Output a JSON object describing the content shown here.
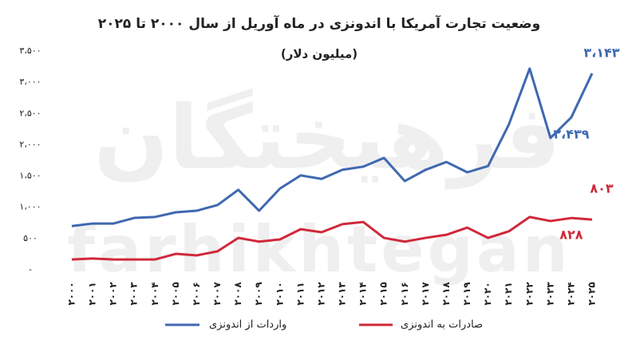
{
  "chart_data": {
    "type": "line",
    "title": "وضعیت تجارت آمریکا با اندونزی در ماه آوریل از سال ۲۰۰۰ تا ۲۰۲۵",
    "subtitle": "(میلیون دلار)",
    "watermark": [
      "فرهیختگان",
      "farhikhtegan"
    ],
    "categories": [
      "۲۰۰۰",
      "۲۰۰۱",
      "۲۰۰۲",
      "۲۰۰۳",
      "۲۰۰۴",
      "۲۰۰۵",
      "۲۰۰۶",
      "۲۰۰۷",
      "۲۰۰۸",
      "۲۰۰۹",
      "۲۰۱۰",
      "۲۰۱۱",
      "۲۰۱۲",
      "۲۰۱۳",
      "۲۰۱۴",
      "۲۰۱۵",
      "۲۰۱۶",
      "۲۰۱۷",
      "۲۰۱۸",
      "۲۰۱۹",
      "۲۰۲۰",
      "۲۰۲۱",
      "۲۰۲۲",
      "۲۰۲۳",
      "۲۰۲۴",
      "۲۰۲۵"
    ],
    "series": [
      {
        "name": "واردات از اندونزی",
        "color": "#3f68b0",
        "values": [
          700,
          740,
          740,
          830,
          845,
          920,
          945,
          1035,
          1280,
          945,
          1300,
          1510,
          1455,
          1600,
          1650,
          1790,
          1420,
          1600,
          1725,
          1560,
          1660,
          2325,
          3220,
          2110,
          2439,
          3143
        ],
        "value_labels": [
          null,
          null,
          null,
          null,
          null,
          null,
          null,
          null,
          null,
          null,
          null,
          null,
          null,
          null,
          null,
          null,
          null,
          null,
          null,
          null,
          null,
          null,
          null,
          null,
          "۲،۴۳۹",
          "۳،۱۴۳"
        ]
      },
      {
        "name": "صادرات به اندونزی",
        "color": "#d0293a",
        "values": [
          165,
          180,
          165,
          165,
          165,
          255,
          230,
          295,
          510,
          450,
          485,
          650,
          600,
          730,
          765,
          510,
          450,
          510,
          560,
          675,
          510,
          615,
          845,
          780,
          828,
          803
        ],
        "value_labels": [
          null,
          null,
          null,
          null,
          null,
          null,
          null,
          null,
          null,
          null,
          null,
          null,
          null,
          null,
          null,
          null,
          null,
          null,
          null,
          null,
          null,
          null,
          null,
          null,
          "۸۲۸",
          "۸۰۳"
        ]
      }
    ],
    "ylim": [
      0,
      3500
    ],
    "yticks": [
      {
        "value": 0,
        "label": "-"
      },
      "۵۰۰",
      "۱،۰۰۰",
      "۱،۵۰۰",
      "۲،۰۰۰",
      "۲،۵۰۰",
      "۳،۰۰۰",
      "۳،۵۰۰"
    ],
    "ytick_values": [
      0,
      500,
      1000,
      1500,
      2000,
      2500,
      3000,
      3500
    ],
    "grid": false,
    "legend": "bottom"
  }
}
